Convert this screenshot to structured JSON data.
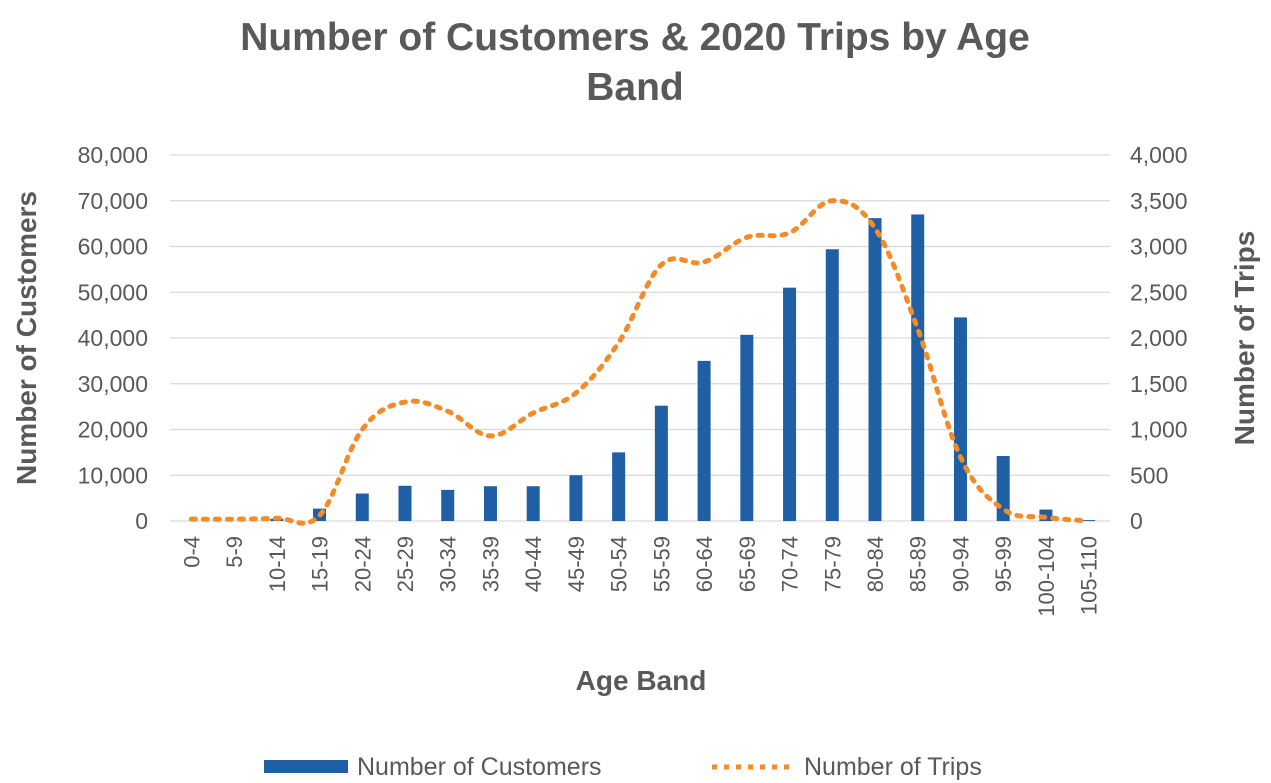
{
  "chart_data": {
    "type": "bar",
    "title_line1": "Number of Customers & 2020 Trips by Age",
    "title_line2": "Band",
    "xlabel": "Age Band",
    "ylabel_left": "Number of Customers",
    "ylabel_right": "Number of Trips",
    "categories": [
      "0-4",
      "5-9",
      "10-14",
      "15-19",
      "20-24",
      "25-29",
      "30-34",
      "35-39",
      "40-44",
      "45-49",
      "50-54",
      "55-59",
      "60-64",
      "65-69",
      "70-74",
      "75-79",
      "80-84",
      "85-89",
      "90-94",
      "95-99",
      "100-104",
      "105-110"
    ],
    "ylim_left": [
      0,
      80000
    ],
    "ylim_right": [
      0,
      4000
    ],
    "left_ticks": [
      "0",
      "10,000",
      "20,000",
      "30,000",
      "40,000",
      "50,000",
      "60,000",
      "70,000",
      "80,000"
    ],
    "right_ticks": [
      "0",
      "500",
      "1,000",
      "1,500",
      "2,000",
      "2,500",
      "3,000",
      "3,500",
      "4,000"
    ],
    "grid": true,
    "legend_position": "bottom",
    "series": [
      {
        "name": "Number of Customers",
        "type": "bar",
        "axis": "left",
        "color": "#1f5fa6",
        "values": [
          0,
          0,
          500,
          2700,
          6000,
          7700,
          6800,
          7600,
          7600,
          10000,
          15000,
          25200,
          35000,
          40700,
          51000,
          59400,
          66200,
          67000,
          44500,
          14200,
          2500,
          200
        ]
      },
      {
        "name": "Number of Trips",
        "type": "line",
        "style": "dotted",
        "axis": "right",
        "color": "#f28c28",
        "values": [
          20,
          20,
          30,
          60,
          1000,
          1300,
          1200,
          930,
          1180,
          1400,
          1950,
          2800,
          2830,
          3100,
          3150,
          3500,
          3200,
          2100,
          700,
          130,
          40,
          0
        ]
      }
    ]
  }
}
